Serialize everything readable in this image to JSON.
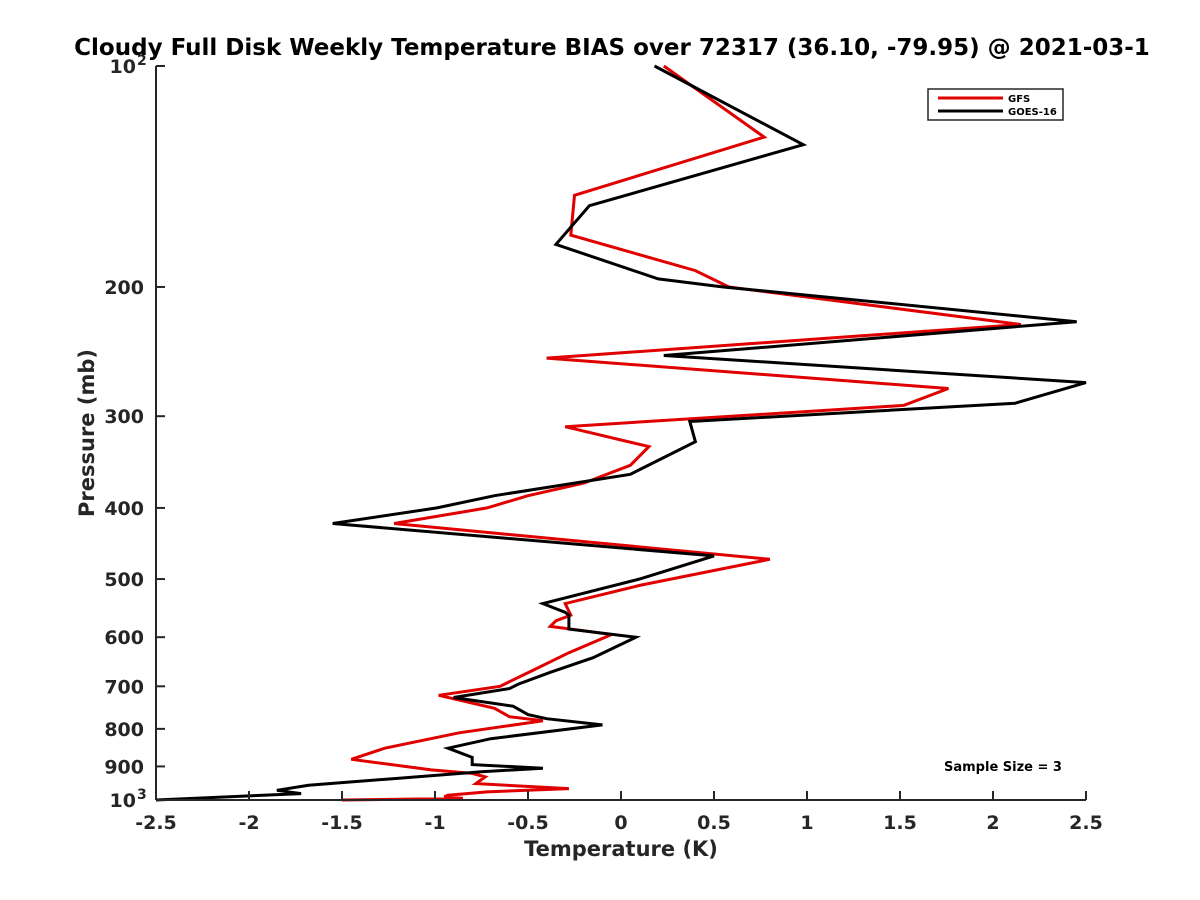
{
  "chart_data": {
    "type": "line",
    "title": "Cloudy Full Disk Weekly Temperature BIAS over 72317 (36.10, -79.95) @ 2021-03-1",
    "xlabel": "Temperature (K)",
    "ylabel": "Pressure (mb)",
    "xlim": [
      -2.5,
      2.5
    ],
    "ylim": [
      100,
      1000
    ],
    "y_scale": "log",
    "y_reversed": true,
    "x_ticks": [
      "-2.5",
      "-2",
      "-1.5",
      "-1",
      "-0.5",
      "0",
      "0.5",
      "1",
      "1.5",
      "2",
      "2.5"
    ],
    "y_ticks": [
      {
        "value": 100,
        "label": "10",
        "sup": "2"
      },
      {
        "value": 200,
        "label": "200",
        "sup": ""
      },
      {
        "value": 300,
        "label": "300",
        "sup": ""
      },
      {
        "value": 400,
        "label": "400",
        "sup": ""
      },
      {
        "value": 500,
        "label": "500",
        "sup": ""
      },
      {
        "value": 600,
        "label": "600",
        "sup": ""
      },
      {
        "value": 700,
        "label": "700",
        "sup": ""
      },
      {
        "value": 800,
        "label": "800",
        "sup": ""
      },
      {
        "value": 900,
        "label": "900",
        "sup": ""
      },
      {
        "value": 1000,
        "label": "10",
        "sup": "3"
      }
    ],
    "grid": false,
    "legend_position": "top-right",
    "annotation": "Sample Size = 3",
    "series": [
      {
        "name": "GFS",
        "color": "#e00000",
        "points": [
          [
            0.23,
            100
          ],
          [
            0.77,
            125
          ],
          [
            -0.25,
            150
          ],
          [
            -0.27,
            170
          ],
          [
            0.4,
            190
          ],
          [
            0.58,
            200
          ],
          [
            2.15,
            225
          ],
          [
            -0.4,
            250
          ],
          [
            1.76,
            275
          ],
          [
            1.52,
            290
          ],
          [
            -0.3,
            310
          ],
          [
            0.15,
            330
          ],
          [
            0.05,
            350
          ],
          [
            -0.2,
            370
          ],
          [
            -0.5,
            385
          ],
          [
            -0.72,
            400
          ],
          [
            -1.22,
            420
          ],
          [
            0.8,
            470
          ],
          [
            0.1,
            510
          ],
          [
            -0.3,
            540
          ],
          [
            -0.27,
            560
          ],
          [
            -0.35,
            570
          ],
          [
            -0.38,
            580
          ],
          [
            -0.05,
            595
          ],
          [
            -0.28,
            630
          ],
          [
            -0.47,
            665
          ],
          [
            -0.6,
            690
          ],
          [
            -0.65,
            700
          ],
          [
            -0.98,
            720
          ],
          [
            -0.68,
            750
          ],
          [
            -0.6,
            770
          ],
          [
            -0.42,
            780
          ],
          [
            -0.87,
            810
          ],
          [
            -1.27,
            850
          ],
          [
            -1.45,
            880
          ],
          [
            -1.02,
            910
          ],
          [
            -0.8,
            920
          ],
          [
            -0.73,
            930
          ],
          [
            -0.78,
            950
          ],
          [
            -0.28,
            965
          ],
          [
            -0.72,
            975
          ],
          [
            -0.93,
            985
          ],
          [
            -0.95,
            990
          ],
          [
            -0.85,
            995
          ],
          [
            -1.5,
            1000
          ]
        ]
      },
      {
        "name": "GOES-16",
        "color": "#000000",
        "points": [
          [
            0.18,
            100
          ],
          [
            0.98,
            128
          ],
          [
            -0.17,
            155
          ],
          [
            -0.35,
            175
          ],
          [
            0.2,
            195
          ],
          [
            0.55,
            200
          ],
          [
            2.45,
            223
          ],
          [
            0.23,
            248
          ],
          [
            2.5,
            270
          ],
          [
            2.12,
            288
          ],
          [
            0.37,
            305
          ],
          [
            0.4,
            325
          ],
          [
            0.05,
            360
          ],
          [
            -0.68,
            385
          ],
          [
            -0.99,
            400
          ],
          [
            -1.55,
            420
          ],
          [
            0.5,
            465
          ],
          [
            0.1,
            500
          ],
          [
            -0.42,
            540
          ],
          [
            -0.3,
            555
          ],
          [
            -0.28,
            560
          ],
          [
            -0.28,
            570
          ],
          [
            -0.28,
            585
          ],
          [
            0.08,
            600
          ],
          [
            -0.15,
            640
          ],
          [
            -0.38,
            670
          ],
          [
            -0.55,
            695
          ],
          [
            -0.6,
            705
          ],
          [
            -0.9,
            725
          ],
          [
            -0.58,
            745
          ],
          [
            -0.5,
            765
          ],
          [
            -0.4,
            775
          ],
          [
            -0.1,
            790
          ],
          [
            -0.7,
            825
          ],
          [
            -0.93,
            850
          ],
          [
            -0.8,
            875
          ],
          [
            -0.8,
            895
          ],
          [
            -0.42,
            905
          ],
          [
            -0.75,
            915
          ],
          [
            -1.22,
            935
          ],
          [
            -1.68,
            955
          ],
          [
            -1.85,
            970
          ],
          [
            -1.72,
            980
          ],
          [
            -2.5,
            1000
          ]
        ]
      }
    ]
  }
}
